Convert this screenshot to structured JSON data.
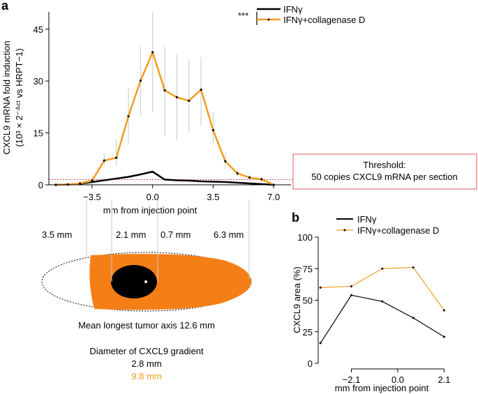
{
  "colors": {
    "ifng": "#000000",
    "collagenase": "#f39c1f",
    "error_bar": "#c8c8c8",
    "threshold_line": "#d9534f",
    "threshold_box": "#e05a5a",
    "tumor_fill": "#f57f17",
    "gradient_core": "#000000"
  },
  "panel_a": {
    "letter": "a",
    "significance": "***",
    "threshold_title": "Threshold:",
    "threshold_text": "50 copies CXCL9 mRNA per section"
  },
  "diagram": {
    "distances": [
      "3.5 mm",
      "2.1 mm",
      "0.7 mm",
      "6.3 mm"
    ],
    "axis_caption": "Mean longest tumor axis 12.6 mm",
    "gradient_title": "Diameter of CXCL9 gradient",
    "gradient_ifng": "2.8 mm",
    "gradient_collagenase": "9.8 mm"
  },
  "panel_b": {
    "letter": "b"
  },
  "chart_data": [
    {
      "type": "line",
      "xlabel": "mm from injection point",
      "ylabel": "CXCL9 mRNA fold induction",
      "ylabel2": "(10³ × 2⁻ᐞᶜᵗ vs HRPT−1)",
      "xlim": [
        -6.0,
        8.0
      ],
      "ylim": [
        0,
        50
      ],
      "yticks": [
        0,
        15,
        30,
        45
      ],
      "xticks": [
        -3.5,
        0.0,
        3.5,
        7.0
      ],
      "xtick_labels": [
        "−3.5",
        "0.0",
        "3.5",
        "7.0"
      ],
      "threshold": 1.5,
      "x": [
        -5.6,
        -4.9,
        -4.2,
        -3.5,
        -2.8,
        -2.1,
        -1.4,
        -0.7,
        0.0,
        0.7,
        1.4,
        2.1,
        2.8,
        3.5,
        4.2,
        4.9,
        5.6,
        6.3,
        7.0
      ],
      "series": [
        {
          "name": "IFNγ",
          "values": [
            0.0,
            0.1,
            0.3,
            0.8,
            1.3,
            1.8,
            2.3,
            3.0,
            3.8,
            1.5,
            1.3,
            1.2,
            1.0,
            0.9,
            0.8,
            0.6,
            0.4,
            0.2,
            0.0
          ]
        },
        {
          "name": "IFNγ+collagenase D",
          "values": [
            0.0,
            0.1,
            0.4,
            1.2,
            7.0,
            7.8,
            19.8,
            30.1,
            38.3,
            27.3,
            25.3,
            24.3,
            27.5,
            15.8,
            6.8,
            3.3,
            2.1,
            1.6,
            0.0
          ],
          "err_low": [
            0.0,
            0.0,
            0.0,
            0.3,
            5.5,
            5.5,
            12.0,
            20.0,
            21.0,
            14.0,
            13.0,
            15.0,
            17.0,
            12.0,
            4.5,
            2.5,
            1.0,
            0.8,
            0.0
          ],
          "err_high": [
            0.1,
            0.2,
            0.6,
            2.5,
            9.0,
            13.0,
            28.0,
            40.0,
            50.0,
            40.0,
            38.0,
            36.0,
            37.0,
            21.0,
            9.5,
            4.5,
            3.0,
            2.5,
            0.2
          ]
        }
      ]
    },
    {
      "type": "line",
      "xlabel": "mm from injection point",
      "ylabel": "CXCL9 area (%)",
      "xlim": [
        -3.6,
        2.4
      ],
      "ylim": [
        0,
        100
      ],
      "yticks": [
        0,
        25,
        50,
        75,
        100
      ],
      "xticks": [
        -2.1,
        0.0,
        2.1
      ],
      "xtick_labels": [
        "−2.1",
        "0.0",
        "2.1"
      ],
      "x": [
        -3.5,
        -2.1,
        -0.7,
        0.7,
        2.1
      ],
      "series": [
        {
          "name": "IFNγ",
          "values": [
            16,
            54,
            49,
            36,
            21
          ]
        },
        {
          "name": "IFNγ+collagenase D",
          "values": [
            60,
            61,
            75,
            76,
            42
          ]
        }
      ]
    }
  ]
}
